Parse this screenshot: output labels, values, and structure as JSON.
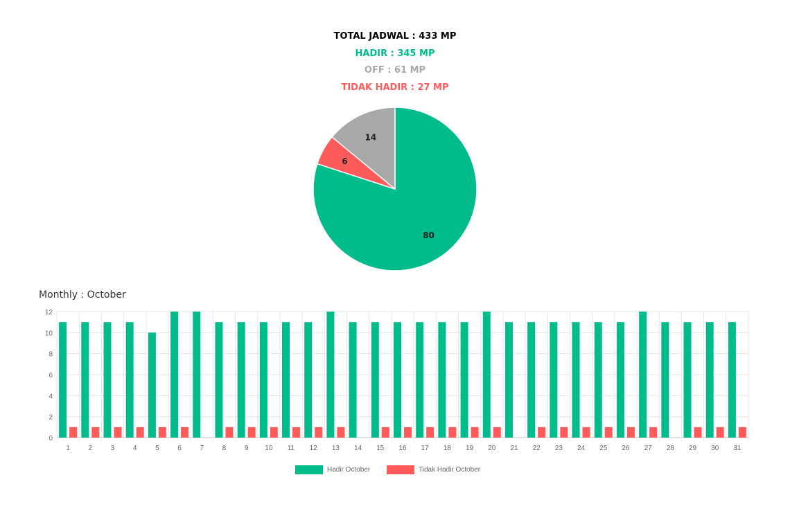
{
  "summary": {
    "total": "TOTAL JADWAL : 433 MP",
    "hadir": "HADIR : 345 MP",
    "off": "OFF : 61 MP",
    "tidak_hadir": "TIDAK HADIR : 27 MP"
  },
  "colors": {
    "total": "#000000",
    "hadir": "#00bc8c",
    "off": "#a8a8a8",
    "tidak_hadir": "#ff5b5b"
  },
  "monthly_title": "Monthly : October",
  "chart_data": [
    {
      "type": "pie",
      "slices": [
        {
          "label": "80",
          "value": 80,
          "color": "#00bc8c"
        },
        {
          "label": "6",
          "value": 6,
          "color": "#ff5b5b"
        },
        {
          "label": "14",
          "value": 14,
          "color": "#a8a8a8"
        }
      ],
      "unit": "percent"
    },
    {
      "type": "bar",
      "categories": [
        "1",
        "2",
        "3",
        "4",
        "5",
        "6",
        "7",
        "8",
        "9",
        "10",
        "11",
        "12",
        "13",
        "14",
        "15",
        "16",
        "17",
        "18",
        "19",
        "20",
        "21",
        "22",
        "23",
        "24",
        "25",
        "26",
        "27",
        "28",
        "29",
        "30",
        "31"
      ],
      "series": [
        {
          "name": "Hadir October",
          "color": "#00bc8c",
          "values": [
            11,
            11,
            11,
            11,
            10,
            12,
            12,
            11,
            11,
            11,
            11,
            11,
            12,
            11,
            11,
            11,
            11,
            11,
            11,
            12,
            11,
            11,
            11,
            11,
            11,
            11,
            12,
            11,
            11,
            11,
            11
          ]
        },
        {
          "name": "Tidak Hadir October",
          "color": "#ff5b5b",
          "values": [
            1,
            1,
            1,
            1,
            1,
            1,
            0,
            1,
            1,
            1,
            1,
            1,
            1,
            0,
            1,
            1,
            1,
            1,
            1,
            1,
            0,
            1,
            1,
            1,
            1,
            1,
            1,
            0,
            1,
            1,
            1
          ]
        }
      ],
      "yticks": [
        "0",
        "2",
        "4",
        "6",
        "8",
        "10",
        "12"
      ],
      "ylim": [
        0,
        12
      ],
      "grid": true,
      "legend": "bottom"
    }
  ]
}
